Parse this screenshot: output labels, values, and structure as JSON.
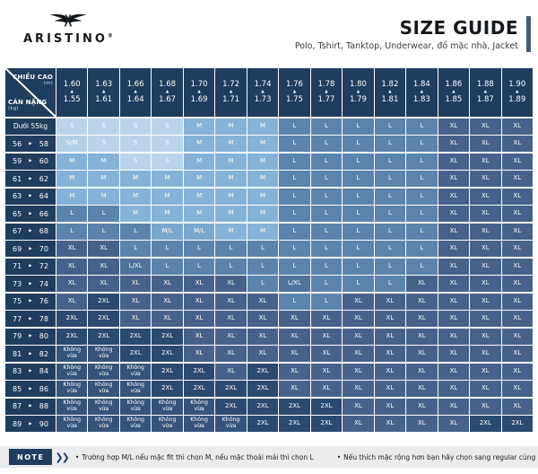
{
  "brand": {
    "name": "ARISTINO",
    "registered_mark": "®"
  },
  "header": {
    "title": "SIZE GUIDE",
    "subtitle": "Polo, Tshirt, Tanktop, Underwear, đồ mặc nhà, Jacket"
  },
  "table": {
    "corner": {
      "top_label": "CHIỀU CAO",
      "top_unit": "(m)",
      "bottom_label": "CÂN NẶNG",
      "bottom_unit": "(kg)"
    },
    "height_columns": [
      {
        "max": "1.60",
        "min": "1.55"
      },
      {
        "max": "1.63",
        "min": "1.61"
      },
      {
        "max": "1.66",
        "min": "1.64"
      },
      {
        "max": "1.68",
        "min": "1.67"
      },
      {
        "max": "1.70",
        "min": "1.69"
      },
      {
        "max": "1.72",
        "min": "1.71"
      },
      {
        "max": "1.74",
        "min": "1.73"
      },
      {
        "max": "1.76",
        "min": "1.75"
      },
      {
        "max": "1.78",
        "min": "1.77"
      },
      {
        "max": "1.80",
        "min": "1.79"
      },
      {
        "max": "1.82",
        "min": "1.81"
      },
      {
        "max": "1.84",
        "min": "1.83"
      },
      {
        "max": "1.86",
        "min": "1.85"
      },
      {
        "max": "1.88",
        "min": "1.87"
      },
      {
        "max": "1.90",
        "min": "1.89"
      }
    ],
    "rows": [
      {
        "label": "Dưới 55kg",
        "cells": [
          "S",
          "S",
          "S",
          "S",
          "M",
          "M",
          "M",
          "L",
          "L",
          "L",
          "L",
          "L",
          "XL",
          "XL",
          "XL"
        ]
      },
      {
        "from": "56",
        "to": "58",
        "cells": [
          "S/M",
          "S",
          "S",
          "S",
          "M",
          "M",
          "M",
          "L",
          "L",
          "L",
          "L",
          "L",
          "XL",
          "XL",
          "XL"
        ]
      },
      {
        "from": "59",
        "to": "60",
        "cells": [
          "M",
          "M",
          "S",
          "S",
          "M",
          "M",
          "M",
          "L",
          "L",
          "L",
          "L",
          "L",
          "XL",
          "XL",
          "XL"
        ]
      },
      {
        "from": "61",
        "to": "62",
        "cells": [
          "M",
          "M",
          "M",
          "M",
          "M",
          "M",
          "M",
          "L",
          "L",
          "L",
          "L",
          "L",
          "XL",
          "XL",
          "XL"
        ]
      },
      {
        "from": "63",
        "to": "64",
        "cells": [
          "M",
          "M",
          "M",
          "M",
          "M",
          "M",
          "M",
          "L",
          "L",
          "L",
          "L",
          "L",
          "XL",
          "XL",
          "XL"
        ]
      },
      {
        "from": "65",
        "to": "66",
        "cells": [
          "L",
          "L",
          "M",
          "M",
          "M",
          "M",
          "M",
          "L",
          "L",
          "L",
          "L",
          "L",
          "XL",
          "XL",
          "XL"
        ]
      },
      {
        "from": "67",
        "to": "68",
        "cells": [
          "L",
          "L",
          "L",
          "M/L",
          "M/L",
          "M",
          "M",
          "L",
          "L",
          "L",
          "L",
          "L",
          "XL",
          "XL",
          "XL"
        ]
      },
      {
        "from": "69",
        "to": "70",
        "cells": [
          "XL",
          "XL",
          "L",
          "L",
          "L",
          "L",
          "L",
          "L",
          "L",
          "L",
          "L",
          "L",
          "XL",
          "XL",
          "XL"
        ]
      },
      {
        "from": "71",
        "to": "72",
        "cells": [
          "XL",
          "XL",
          "L/XL",
          "L",
          "L",
          "L",
          "L",
          "L",
          "L",
          "L",
          "L",
          "L",
          "XL",
          "XL",
          "XL"
        ]
      },
      {
        "from": "73",
        "to": "74",
        "cells": [
          "XL",
          "XL",
          "XL",
          "XL",
          "XL",
          "XL",
          "L",
          "L/XL",
          "L",
          "L",
          "L",
          "XL",
          "XL",
          "XL",
          "XL"
        ]
      },
      {
        "from": "75",
        "to": "76",
        "cells": [
          "XL",
          "2XL",
          "XL",
          "XL",
          "XL",
          "XL",
          "XL",
          "L",
          "L",
          "XL",
          "XL",
          "XL",
          "XL",
          "XL",
          "XL"
        ]
      },
      {
        "from": "77",
        "to": "78",
        "cells": [
          "2XL",
          "2XL",
          "XL",
          "XL",
          "XL",
          "XL",
          "XL",
          "XL",
          "XL",
          "XL",
          "XL",
          "XL",
          "XL",
          "XL",
          "XL"
        ]
      },
      {
        "from": "79",
        "to": "80",
        "cells": [
          "2XL",
          "2XL",
          "2XL",
          "2XL",
          "XL",
          "XL",
          "XL",
          "XL",
          "XL",
          "XL",
          "XL",
          "XL",
          "XL",
          "XL",
          "XL"
        ]
      },
      {
        "from": "81",
        "to": "82",
        "cells": [
          "Không vừa",
          "Không vừa",
          "2XL",
          "2XL",
          "XL",
          "XL",
          "XL",
          "XL",
          "XL",
          "XL",
          "XL",
          "XL",
          "XL",
          "XL",
          "XL"
        ]
      },
      {
        "from": "83",
        "to": "84",
        "cells": [
          "Không vừa",
          "Không vừa",
          "Không vừa",
          "2XL",
          "2XL",
          "XL",
          "2XL",
          "XL",
          "XL",
          "XL",
          "XL",
          "XL",
          "XL",
          "XL",
          "XL"
        ]
      },
      {
        "from": "85",
        "to": "86",
        "cells": [
          "Không vừa",
          "Không vừa",
          "Không vừa",
          "2XL",
          "2XL",
          "2XL",
          "2XL",
          "XL",
          "XL",
          "XL",
          "XL",
          "XL",
          "XL",
          "XL",
          "XL"
        ]
      },
      {
        "from": "87",
        "to": "88",
        "cells": [
          "Không vừa",
          "Không vừa",
          "Không vừa",
          "Không vừa",
          "Không vừa",
          "2XL",
          "2XL",
          "2XL",
          "2XL",
          "XL",
          "XL",
          "XL",
          "XL",
          "XL",
          "XL"
        ]
      },
      {
        "from": "89",
        "to": "90",
        "cells": [
          "Không vừa",
          "Không vừa",
          "Không vừa",
          "Không vừa",
          "Không vừa",
          "Không vừa",
          "2XL",
          "2XL",
          "2XL",
          "XL",
          "XL",
          "XL",
          "XL",
          "2XL",
          "2XL"
        ]
      }
    ]
  },
  "size_colors": {
    "S": "#b9d4ea",
    "S/M": "#b2cfe8",
    "M": "#84b2d8",
    "M/L": "#79a8cf",
    "L": "#5a83ae",
    "L/XL": "#4f739b",
    "XL": "#46628a",
    "2XL": "#2b4a6f",
    "Không vừa": "#35547a"
  },
  "theme": {
    "header_bg": "#1f3d5d",
    "grid_line": "#ffffff",
    "accent_bar": "#3f5d79",
    "note_strip_bg": "#eaebec"
  },
  "note": {
    "label": "NOTE",
    "bullets": [
      "Trường hợp M/L nếu mặc fit thì chọn M, nếu mặc thoải mái thì chọn L",
      "Nếu thích mặc rộng hơn bạn hãy chọn sang regular cùng size."
    ]
  }
}
